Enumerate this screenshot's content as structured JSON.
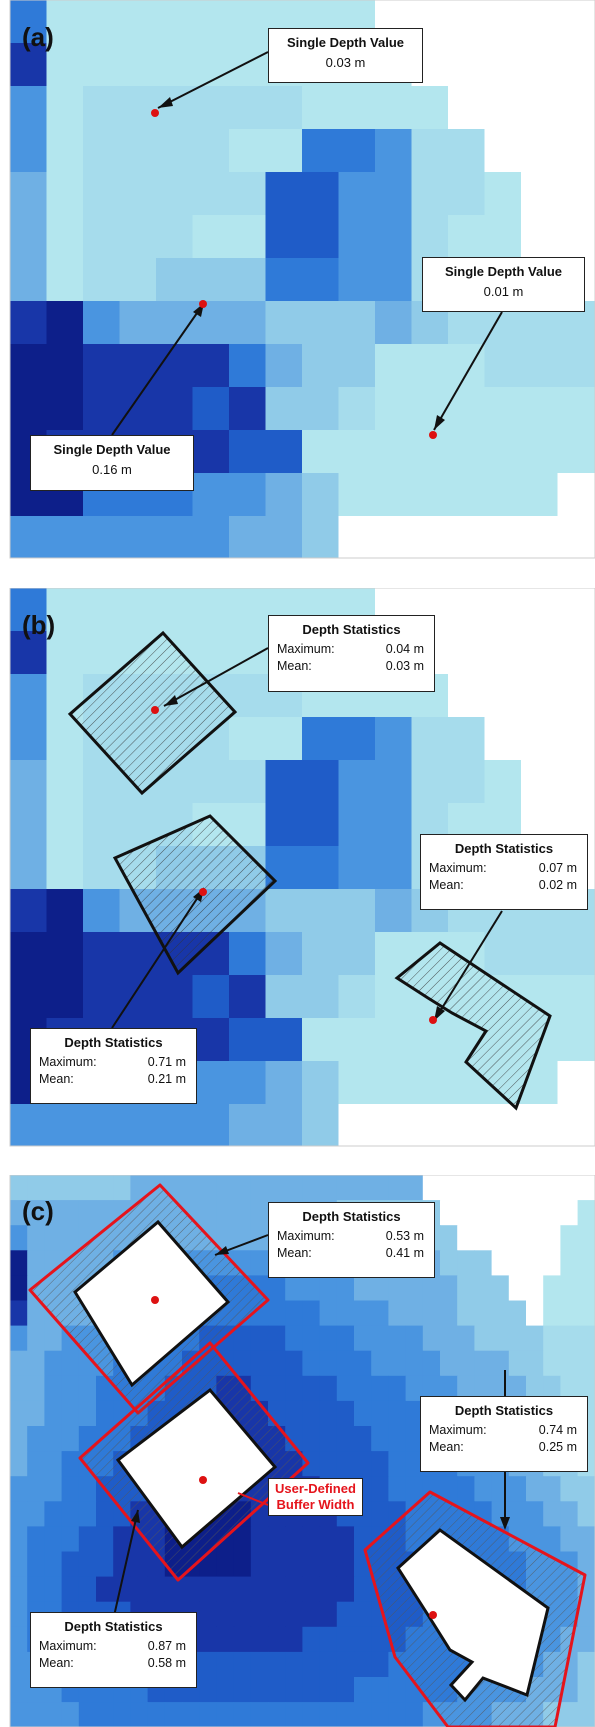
{
  "panels": [
    {
      "label": "(a)",
      "callouts": [
        {
          "title": "Single Depth Value",
          "value": "0.03 m"
        },
        {
          "title": "Single Depth Value",
          "value": "0.01 m"
        },
        {
          "title": "Single Depth Value",
          "value": "0.16 m"
        }
      ]
    },
    {
      "label": "(b)",
      "callouts": [
        {
          "title": "Depth Statistics",
          "max_label": "Maximum:",
          "max": "0.04 m",
          "mean_label": "Mean:",
          "mean": "0.03 m"
        },
        {
          "title": "Depth Statistics",
          "max_label": "Maximum:",
          "max": "0.07 m",
          "mean_label": "Mean:",
          "mean": "0.02 m"
        },
        {
          "title": "Depth Statistics",
          "max_label": "Maximum:",
          "max": "0.71 m",
          "mean_label": "Mean:",
          "mean": "0.21 m"
        }
      ]
    },
    {
      "label": "(c)",
      "callouts": [
        {
          "title": "Depth Statistics",
          "max_label": "Maximum:",
          "max": "0.53 m",
          "mean_label": "Mean:",
          "mean": "0.41 m"
        },
        {
          "title": "Depth Statistics",
          "max_label": "Maximum:",
          "max": "0.74 m",
          "mean_label": "Mean:",
          "mean": "0.25 m"
        },
        {
          "title": "Depth Statistics",
          "max_label": "Maximum:",
          "max": "0.87 m",
          "mean_label": "Mean:",
          "mean": "0.58 m"
        }
      ],
      "buffer_label_line1": "User-Defined",
      "buffer_label_line2": "Buffer Width"
    }
  ],
  "colors": {
    "depth_ramp": [
      "#ffffff",
      "#b3e6ee",
      "#a6dcec",
      "#90cbe8",
      "#6fb0e4",
      "#4a95e0",
      "#2f7ad8",
      "#1f5cc8",
      "#1836a8",
      "#0d1f8a"
    ],
    "point": "#dd1111",
    "buffer_outline": "#e5141c",
    "building_outline": "#111111"
  }
}
